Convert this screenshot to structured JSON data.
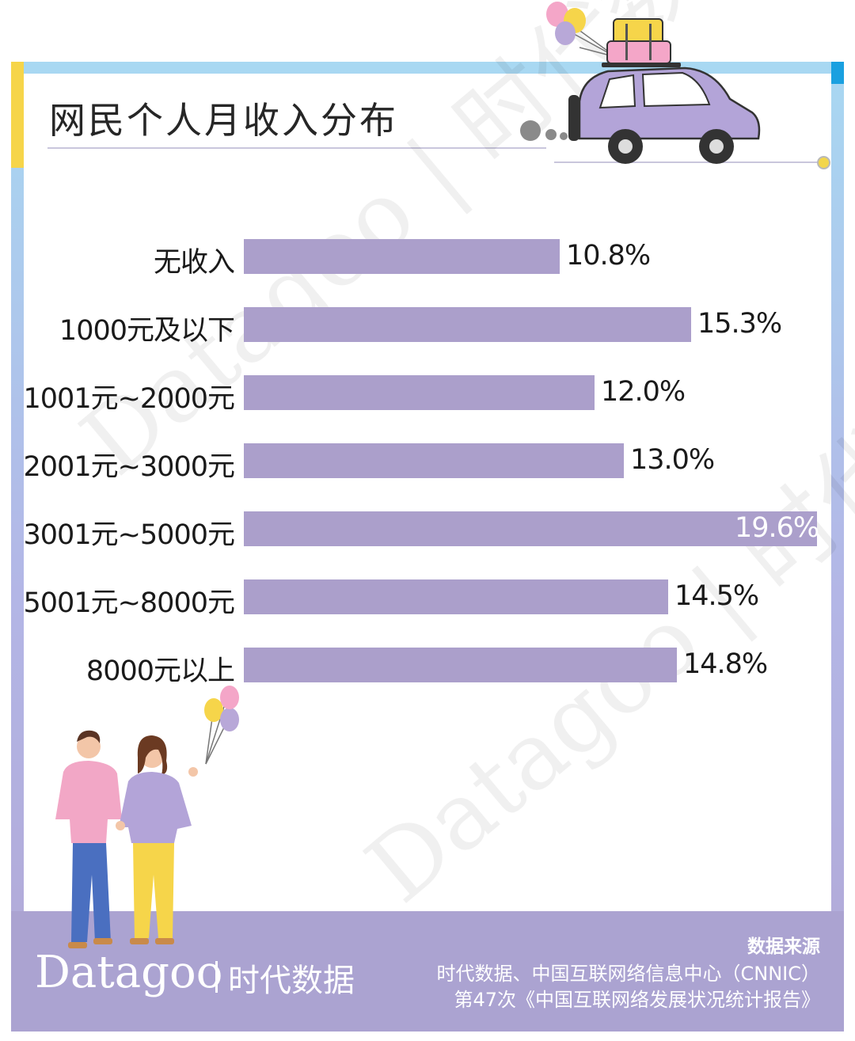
{
  "title": "网民个人月收入分布",
  "colors": {
    "bar": "#ab9fcb",
    "frame_top": "#a8d8f2",
    "frame_bottom": "#aba3d1",
    "accent_yellow": "#f6d54a",
    "accent_blue": "#1aa0e0"
  },
  "watermark": {
    "text": "Datagoo | 时代数据"
  },
  "chart_data": {
    "type": "bar",
    "orientation": "horizontal",
    "title": "网民个人月收入分布",
    "categories": [
      "无收入",
      "1000元及以下",
      "1001元~2000元",
      "2001元~3000元",
      "3001元~5000元",
      "5001元~8000元",
      "8000元以上"
    ],
    "values": [
      10.8,
      15.3,
      12.0,
      13.0,
      19.6,
      14.5,
      14.8
    ],
    "value_labels": [
      "10.8%",
      "15.3%",
      "12.0%",
      "13.0%",
      "19.6%",
      "14.5%",
      "14.8%"
    ],
    "unit": "%",
    "xlim": [
      0,
      19.6
    ],
    "grid": false,
    "legend": "none"
  },
  "footer": {
    "brand_latin": "Datagoo",
    "brand_cn": "时代数据",
    "source_label": "数据来源",
    "source_lines": [
      "时代数据、中国互联网络信息中心（CNNIC）",
      "第47次《中国互联网络发展状况统计报告》"
    ]
  },
  "illustrations": [
    "car-with-luggage-icon",
    "balloons-icon",
    "couple-illustration-icon"
  ]
}
